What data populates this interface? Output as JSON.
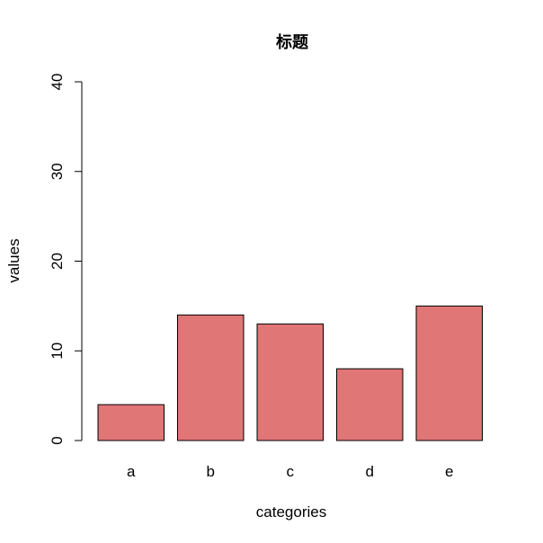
{
  "chart_data": {
    "type": "bar",
    "title": "标题",
    "xlabel": "categories",
    "ylabel": "values",
    "categories": [
      "a",
      "b",
      "c",
      "d",
      "e"
    ],
    "values": [
      4,
      14,
      13,
      8,
      15
    ],
    "ylim": [
      0,
      40
    ],
    "yticks": [
      0,
      10,
      20,
      30,
      40
    ],
    "grid": false,
    "legend": "none",
    "bar_color": "#E07676",
    "edge_color": "#000000"
  }
}
